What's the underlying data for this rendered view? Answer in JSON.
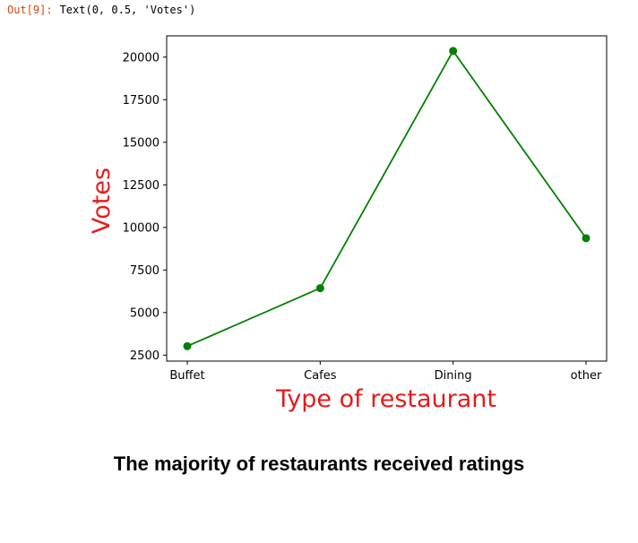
{
  "cell": {
    "prompt": "Out[9]:",
    "output": "Text(0, 0.5, 'Votes')"
  },
  "caption": "The majority of restaurants received ratings",
  "colors": {
    "line": "#008000",
    "label": "#e8191b",
    "prompt": "#d84315"
  },
  "chart_data": {
    "type": "line",
    "categories": [
      "Buffet",
      "Cafes",
      "Dining",
      "other"
    ],
    "series": [
      {
        "values": [
          3028,
          6434,
          20363,
          9367
        ]
      }
    ],
    "xlabel": "Type of restaurant",
    "ylabel": "Votes",
    "ylim": [
      2150,
      21250
    ],
    "yticks": [
      2500,
      5000,
      7500,
      10000,
      12500,
      15000,
      17500,
      20000
    ],
    "marker": "circle",
    "grid": false,
    "legend": "none"
  }
}
